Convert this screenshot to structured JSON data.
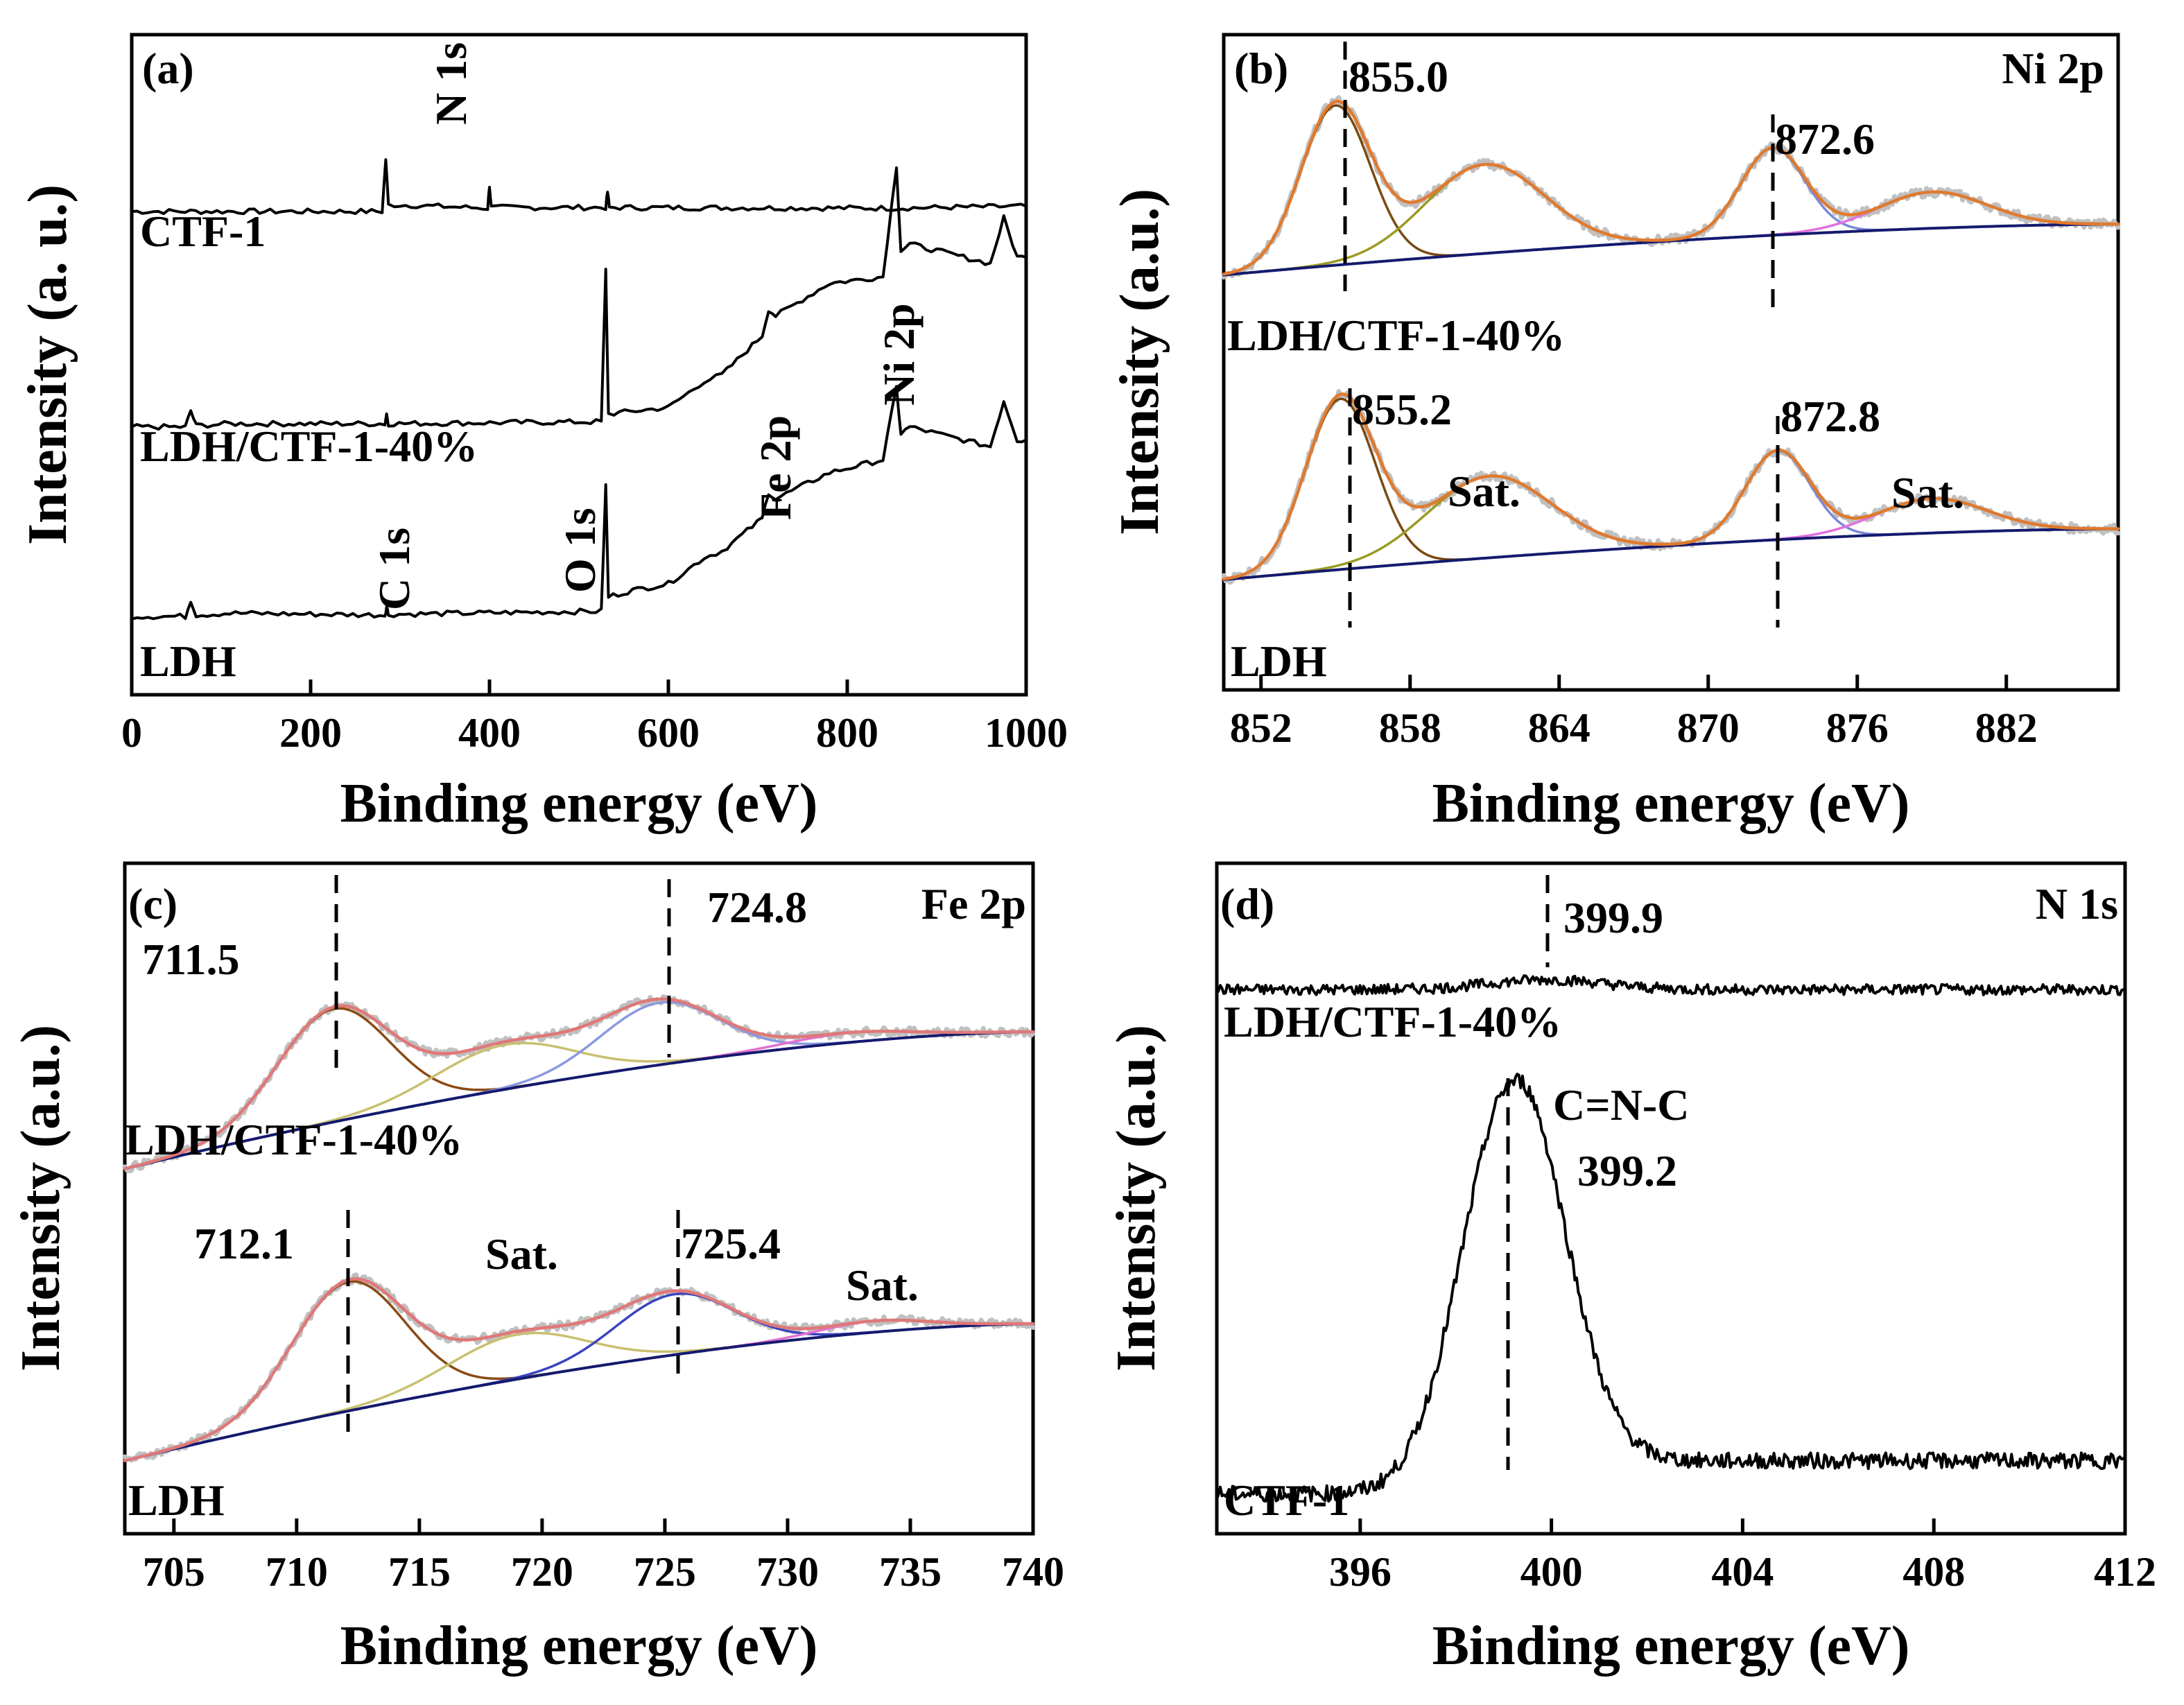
{
  "chart_data": [
    {
      "type": "line",
      "panel_label": "(a)",
      "xlabel": "Binding energy (eV)",
      "ylabel": "Intensity (a. u.)",
      "xlim": [
        0,
        1000
      ],
      "x_ticks": [
        "0",
        "200",
        "400",
        "600",
        "800",
        "1000"
      ],
      "series": [
        {
          "name": "CTF-1",
          "color": "#000000",
          "offset": 0.74,
          "points": [
            [
              0,
              0
            ],
            [
              280,
              0
            ],
            [
              284,
              0.08
            ],
            [
              287,
              0.01
            ],
            [
              300,
              0.01
            ],
            [
              398,
              0.005
            ],
            [
              400,
              0.04
            ],
            [
              402,
              0.006
            ],
            [
              530,
              0.006
            ],
            [
              532,
              0.03
            ],
            [
              534,
              0.006
            ],
            [
              850,
              0.005
            ],
            [
              1000,
              0.008
            ]
          ]
        },
        {
          "name": "LDH/CTF-1-40%",
          "color": "#000000",
          "offset": 0.41,
          "points": [
            [
              0,
              0
            ],
            [
              60,
              0
            ],
            [
              66,
              0.025
            ],
            [
              72,
              0.002
            ],
            [
              110,
              0.005
            ],
            [
              283,
              0.005
            ],
            [
              285,
              0.02
            ],
            [
              287,
              0.005
            ],
            [
              525,
              0.008
            ],
            [
              530,
              0.24
            ],
            [
              533,
              0.02
            ],
            [
              600,
              0.03
            ],
            [
              640,
              0.07
            ],
            [
              660,
              0.08
            ],
            [
              705,
              0.14
            ],
            [
              712,
              0.18
            ],
            [
              720,
              0.17
            ],
            [
              780,
              0.22
            ],
            [
              840,
              0.23
            ],
            [
              855,
              0.4
            ],
            [
              860,
              0.27
            ],
            [
              870,
              0.28
            ],
            [
              900,
              0.27
            ],
            [
              960,
              0.25
            ],
            [
              975,
              0.32
            ],
            [
              990,
              0.26
            ],
            [
              1000,
              0.26
            ]
          ]
        },
        {
          "name": "LDH",
          "color": "#000000",
          "offset": 0.12,
          "points": [
            [
              0,
              0
            ],
            [
              60,
              0
            ],
            [
              66,
              0.025
            ],
            [
              72,
              0.002
            ],
            [
              110,
              0.005
            ],
            [
              283,
              0.002
            ],
            [
              285,
              0.015
            ],
            [
              287,
              0.003
            ],
            [
              525,
              0.008
            ],
            [
              530,
              0.2
            ],
            [
              533,
              0.03
            ],
            [
              560,
              0.04
            ],
            [
              600,
              0.05
            ],
            [
              640,
              0.09
            ],
            [
              660,
              0.1
            ],
            [
              705,
              0.15
            ],
            [
              712,
              0.19
            ],
            [
              720,
              0.18
            ],
            [
              780,
              0.22
            ],
            [
              840,
              0.24
            ],
            [
              855,
              0.35
            ],
            [
              860,
              0.28
            ],
            [
              870,
              0.29
            ],
            [
              900,
              0.28
            ],
            [
              960,
              0.26
            ],
            [
              975,
              0.33
            ],
            [
              990,
              0.27
            ],
            [
              1000,
              0.27
            ]
          ]
        }
      ],
      "annotations": [
        "N 1s",
        "CTF-1",
        "LDH/CTF-1-40%",
        "Fe 2p",
        "Ni 2p",
        "C 1s",
        "O 1s",
        "LDH"
      ]
    },
    {
      "type": "line",
      "panel_label": "(b)",
      "title": "Ni 2p",
      "xlabel": "Binding energy (eV)",
      "ylabel": "Intensity (a.u.)",
      "xlim": [
        850.5,
        886.5
      ],
      "x_ticks": [
        "852",
        "858",
        "864",
        "870",
        "876",
        "882"
      ],
      "samples": [
        {
          "name": "LDH/CTF-1-40%",
          "offset": 0.64,
          "scale": 0.28,
          "baseline": [
            0,
            0.28
          ],
          "peaks": [
            {
              "center": 855.0,
              "height": 0.88,
              "width": 1.4,
              "color": "#7a4a12",
              "label": "855.0"
            },
            {
              "center": 861.0,
              "height": 0.49,
              "width": 2.4,
              "color": "#9a9a22",
              "label": ""
            },
            {
              "center": 872.6,
              "height": 0.48,
              "width": 1.3,
              "color": "#7a88d8",
              "label": "872.6"
            },
            {
              "center": 879.0,
              "height": 0.2,
              "width": 2.2,
              "color": "#e070e0",
              "label": ""
            }
          ]
        },
        {
          "name": "LDH",
          "offset": 0.17,
          "scale": 0.28,
          "baseline": [
            0,
            0.28
          ],
          "peaks": [
            {
              "center": 855.2,
              "height": 0.94,
              "width": 1.4,
              "color": "#7a4a12",
              "label": "855.2"
            },
            {
              "center": 861.2,
              "height": 0.45,
              "width": 2.5,
              "color": "#9a9a22",
              "label": "Sat."
            },
            {
              "center": 872.8,
              "height": 0.49,
              "width": 1.3,
              "color": "#7a88d8",
              "label": "872.8"
            },
            {
              "center": 879.0,
              "height": 0.19,
              "width": 2.2,
              "color": "#e070e0",
              "label": "Sat."
            }
          ]
        }
      ],
      "envelope_color": "#e07a2e",
      "background_color": "#141a6e",
      "raw_color": "#c0c0c0",
      "annotations": [
        "855.0",
        "872.6",
        "LDH/CTF-1-40%",
        "855.2",
        "Sat.",
        "872.8",
        "Sat.",
        "LDH"
      ]
    },
    {
      "type": "line",
      "panel_label": "(c)",
      "title": "Fe 2p",
      "xlabel": "Binding energy (eV)",
      "ylabel": "Intensity (a.u.)",
      "xlim": [
        703,
        740
      ],
      "x_ticks": [
        "705",
        "710",
        "715",
        "720",
        "725",
        "730",
        "735",
        "740"
      ],
      "samples": [
        {
          "name": "LDH/CTF-1-40%",
          "offset": 0.55,
          "scale": 0.24,
          "baseline": [
            0,
            0.86
          ],
          "peaks": [
            {
              "center": 711.5,
              "height": 0.71,
              "width": 2.3,
              "color": "#8a4a14",
              "label": "711.5"
            },
            {
              "center": 718.5,
              "height": 0.28,
              "width": 2.8,
              "color": "#c8c070",
              "label": ""
            },
            {
              "center": 724.8,
              "height": 0.39,
              "width": 2.4,
              "color": "#8a98e0",
              "label": "724.8"
            },
            {
              "center": 732.5,
              "height": 0.06,
              "width": 2.5,
              "color": "#e070d0",
              "label": ""
            }
          ]
        },
        {
          "name": "LDH",
          "offset": 0.11,
          "scale": 0.24,
          "baseline": [
            0,
            0.86
          ],
          "peaks": [
            {
              "center": 712.1,
              "height": 0.81,
              "width": 2.3,
              "color": "#8a4a14",
              "label": "712.1"
            },
            {
              "center": 719.0,
              "height": 0.28,
              "width": 2.8,
              "color": "#c8c070",
              "label": "Sat."
            },
            {
              "center": 725.4,
              "height": 0.38,
              "width": 2.4,
              "color": "#3a44c0",
              "label": "725.4"
            },
            {
              "center": 733.5,
              "height": 0.07,
              "width": 2.2,
              "color": "#e070d0",
              "label": "Sat."
            }
          ]
        }
      ],
      "envelope_color": "#e07878",
      "background_color": "#141a6e",
      "raw_color": "#c0c0c0",
      "annotations": [
        "711.5",
        "724.8",
        "LDH/CTF-1-40%",
        "712.1",
        "Sat.",
        "725.4",
        "Sat.",
        "LDH"
      ]
    },
    {
      "type": "line",
      "panel_label": "(d)",
      "title": "N 1s",
      "xlabel": "Binding energy (eV)",
      "ylabel": "Intensity (a.u.)",
      "xlim": [
        393,
        412
      ],
      "x_ticks": [
        "396",
        "400",
        "404",
        "408",
        "412"
      ],
      "series": [
        {
          "name": "LDH/CTF-1-40%",
          "color": "#000000",
          "offset": 0.82,
          "peak_center": 399.9,
          "peak_height": 0.015,
          "peak_width": 1.2,
          "noise": 0.008,
          "tail": 0.0
        },
        {
          "name": "CTF-1",
          "color": "#000000",
          "offset": 0.06,
          "peak_center": 399.2,
          "peak_height": 0.62,
          "peak_width": 1.05,
          "noise": 0.012,
          "tail": 0.05
        }
      ],
      "annotations": [
        "399.9",
        "LDH/CTF-1-40%",
        "C=N-C",
        "399.2",
        "CTF-1"
      ]
    }
  ]
}
